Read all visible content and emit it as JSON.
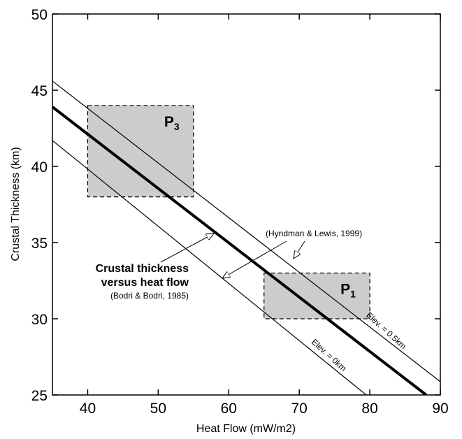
{
  "chart_data": {
    "type": "line",
    "xlabel": "Heat Flow (mW/m2)",
    "ylabel": "Crustal Thickness (km)",
    "xlim": [
      35,
      90
    ],
    "ylim": [
      25,
      50
    ],
    "xticks": [
      40,
      50,
      60,
      70,
      80,
      90
    ],
    "yticks": [
      25,
      30,
      35,
      40,
      45,
      50
    ],
    "series": [
      {
        "name": "Crustal thickness versus heat flow",
        "style": "thick",
        "x": [
          35,
          88
        ],
        "y": [
          43.9,
          25
        ]
      },
      {
        "name": "Elev. = 0.5km",
        "style": "thin",
        "x": [
          35,
          90.2
        ],
        "y": [
          45.6,
          25.8
        ]
      },
      {
        "name": "Elev. = 0km",
        "style": "thin",
        "x": [
          35,
          79.5
        ],
        "y": [
          41.7,
          25
        ]
      }
    ],
    "regions": [
      {
        "label_main": "P",
        "label_sub": "3",
        "x": [
          40,
          55
        ],
        "y": [
          38,
          44
        ]
      },
      {
        "label_main": "P",
        "label_sub": "1",
        "x": [
          65,
          80
        ],
        "y": [
          30,
          33
        ]
      }
    ],
    "annotations": {
      "bold_line1": "Crustal thickness",
      "bold_line2": "versus heat flow",
      "bodri_citation": "(Bodri & Bodri, 1985)",
      "hyndman_citation": "(Hyndman & Lewis, 1999)",
      "elev_05": "Elev. = 0.5km",
      "elev_0": "Elev. = 0km"
    },
    "colors": {
      "region_fill": "#cccccc",
      "line": "#000000",
      "background": "#ffffff"
    },
    "grid": false
  }
}
